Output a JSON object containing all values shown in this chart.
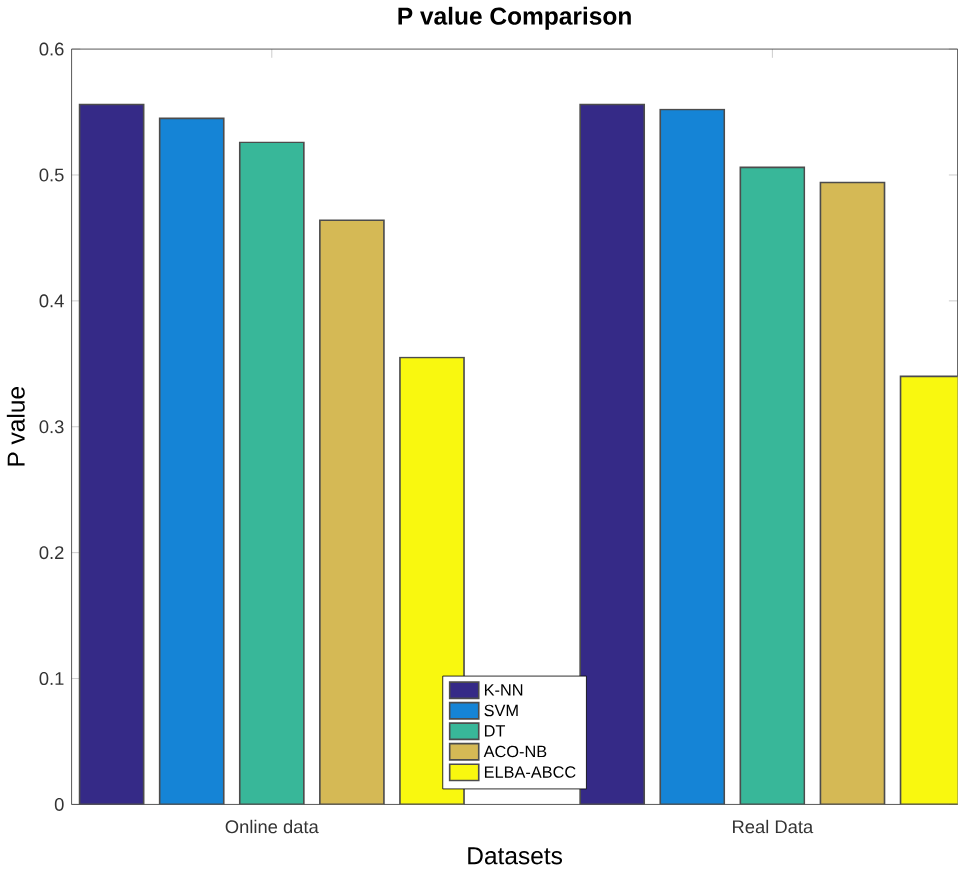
{
  "chart_data": {
    "type": "bar",
    "title": "P value Comparison",
    "xlabel": "Datasets",
    "ylabel": "P value",
    "categories": [
      "Online data",
      "Real Data"
    ],
    "series": [
      {
        "name": "K-NN",
        "color": "#352a87",
        "values": [
          0.556,
          0.556
        ]
      },
      {
        "name": "SVM",
        "color": "#1584d6",
        "values": [
          0.545,
          0.552
        ]
      },
      {
        "name": "DT",
        "color": "#38b799",
        "values": [
          0.526,
          0.506
        ]
      },
      {
        "name": "ACO-NB",
        "color": "#d5b955",
        "values": [
          0.464,
          0.494
        ]
      },
      {
        "name": "ELBA-ABCC",
        "color": "#f9f80f",
        "values": [
          0.355,
          0.34
        ]
      }
    ],
    "ylim": [
      0,
      0.6
    ],
    "yticks": [
      0,
      0.1,
      0.2,
      0.3,
      0.4,
      0.5,
      0.6
    ],
    "legend": "bottom"
  }
}
